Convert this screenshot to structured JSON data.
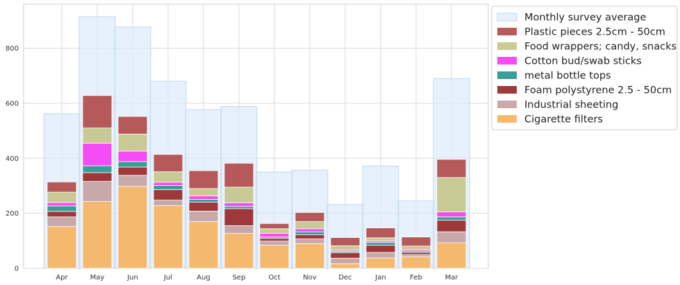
{
  "chart_data": {
    "type": "bar",
    "title": "",
    "xlabel": "",
    "ylabel": "",
    "ylim": [
      0,
      960
    ],
    "yticks": [
      0,
      200,
      400,
      600,
      800
    ],
    "grid": true,
    "legend_position": "outside-top-right",
    "categories": [
      "Apr",
      "May",
      "Jun",
      "Jul",
      "Aug",
      "Sep",
      "Oct",
      "Nov",
      "Dec",
      "Jan",
      "Feb",
      "Mar"
    ],
    "background_series": {
      "name": "Monthly survey average",
      "color": "#dcebfc",
      "values": [
        562,
        915,
        877,
        680,
        577,
        588,
        350,
        357,
        232,
        372,
        245,
        690
      ]
    },
    "series": [
      {
        "name": "Cigarette filters",
        "color": "#f5b35f",
        "values": [
          152,
          243,
          298,
          228,
          170,
          127,
          84,
          90,
          17,
          38,
          42,
          93
        ]
      },
      {
        "name": "Industrial sheeting",
        "color": "#c4a0a0",
        "values": [
          35,
          73,
          40,
          20,
          38,
          28,
          15,
          17,
          20,
          20,
          8,
          40
        ]
      },
      {
        "name": "Foam polystyrene  2.5 - 50cm",
        "color": "#962424",
        "values": [
          20,
          32,
          30,
          38,
          33,
          62,
          10,
          15,
          20,
          26,
          8,
          42
        ]
      },
      {
        "name": "metal bottle tops",
        "color": "#26948e",
        "values": [
          20,
          25,
          20,
          15,
          10,
          8,
          5,
          10,
          5,
          10,
          5,
          12
        ]
      },
      {
        "name": "Cotton bud/swab sticks",
        "color": "#f53af5",
        "values": [
          12,
          82,
          38,
          12,
          12,
          13,
          13,
          12,
          4,
          5,
          5,
          18
        ]
      },
      {
        "name": "Food wrappers; candy, snacks",
        "color": "#c4c488",
        "values": [
          38,
          55,
          62,
          38,
          27,
          57,
          17,
          26,
          16,
          12,
          13,
          125
        ]
      },
      {
        "name": "Plastic pieces 2.5cm - 50cm",
        "color": "#b04848",
        "values": [
          37,
          118,
          64,
          63,
          65,
          87,
          19,
          33,
          30,
          36,
          33,
          66
        ]
      }
    ],
    "legend_order": [
      "Monthly survey average",
      "Plastic pieces 2.5cm - 50cm",
      "Food wrappers; candy, snacks",
      "Cotton bud/swab sticks",
      "metal bottle tops",
      "Foam polystyrene  2.5 - 50cm",
      "Industrial sheeting",
      "Cigarette filters"
    ]
  }
}
